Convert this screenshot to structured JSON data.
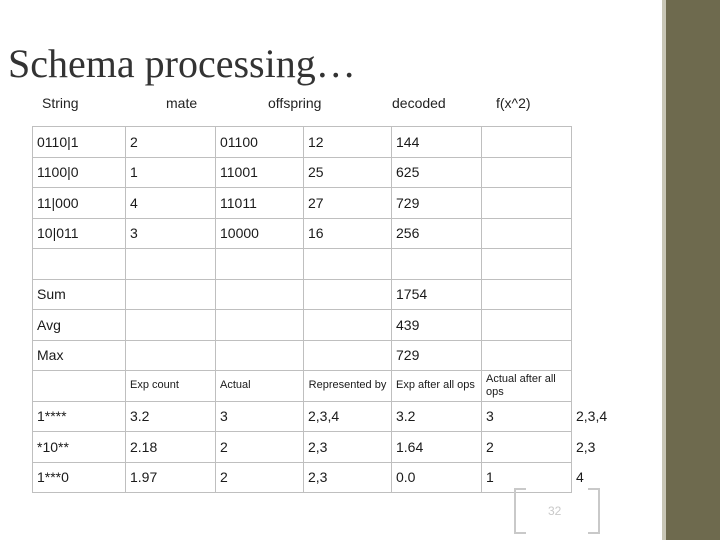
{
  "title": "Schema processing…",
  "headers": [
    "String",
    "mate",
    "offspring",
    "decoded",
    "f(x^2)"
  ],
  "table": {
    "rows": [
      [
        "0110|1",
        "2",
        "01100",
        "12",
        "144",
        "",
        ""
      ],
      [
        "1100|0",
        "1",
        "11001",
        "25",
        "625",
        "",
        ""
      ],
      [
        "11|000",
        "4",
        "11011",
        "27",
        "729",
        "",
        ""
      ],
      [
        "10|011",
        "3",
        "10000",
        "16",
        "256",
        "",
        ""
      ],
      [
        "",
        "",
        "",
        "",
        "",
        "",
        ""
      ],
      [
        "Sum",
        "",
        "",
        "",
        "1754",
        "",
        ""
      ],
      [
        "Avg",
        "",
        "",
        "",
        "439",
        "",
        ""
      ],
      [
        "Max",
        "",
        "",
        "",
        "729",
        "",
        ""
      ],
      [
        "",
        "Exp count",
        "Actual",
        "Represented by",
        "Exp after all ops",
        "Actual after all ops",
        ""
      ],
      [
        "1****",
        "3.2",
        "3",
        "2,3,4",
        "3.2",
        "3",
        "2,3,4"
      ],
      [
        "*10**",
        "2.18",
        "2",
        "2,3",
        "1.64",
        "2",
        "2,3"
      ],
      [
        "1***0",
        "1.97",
        "2",
        "2,3",
        "0.0",
        "1",
        "4"
      ]
    ]
  },
  "page_number": "32",
  "colors": {
    "sidebar": "#6e6a4e",
    "grid_line": "#bfbfbf"
  }
}
